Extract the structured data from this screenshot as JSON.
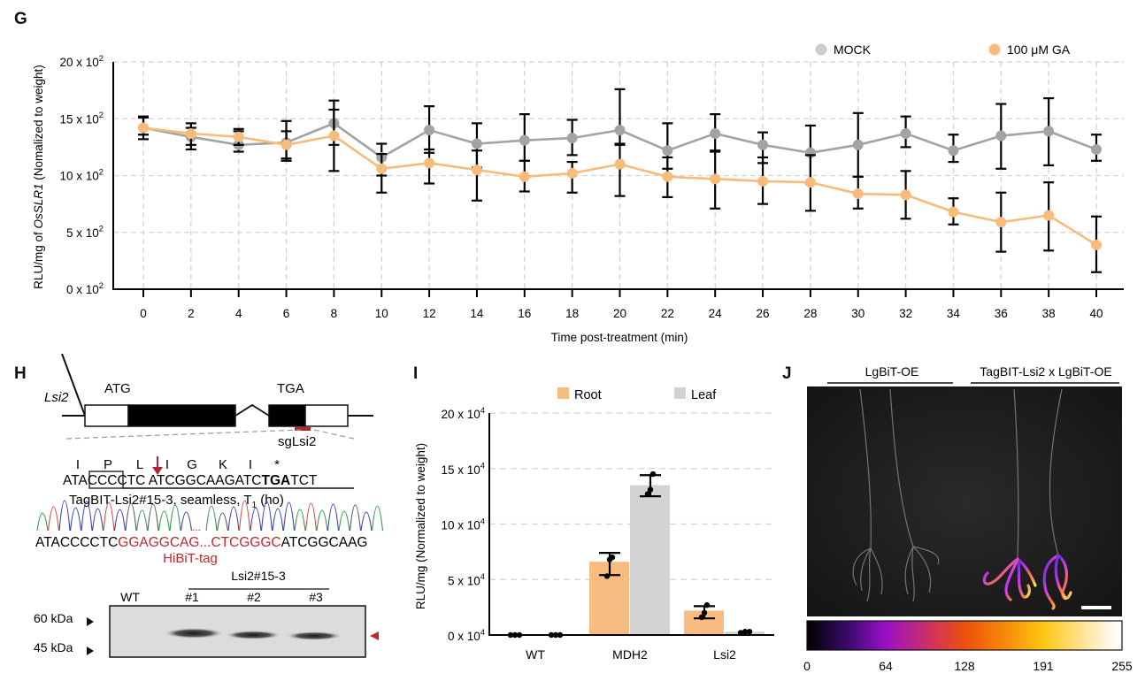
{
  "panels": {
    "G": {
      "letter": "G"
    },
    "H": {
      "letter": "H"
    },
    "I": {
      "letter": "I"
    },
    "J": {
      "letter": "J"
    }
  },
  "chart_data": [
    {
      "id": "G",
      "type": "line",
      "title": "",
      "xlabel": "Time post-treatment (min)",
      "ylabel_parts": [
        "RLU/mg  of ",
        "OsSLR1",
        " (Nomalized to weight)"
      ],
      "x": [
        0,
        2,
        4,
        6,
        8,
        10,
        12,
        14,
        16,
        18,
        20,
        22,
        24,
        26,
        28,
        30,
        32,
        34,
        36,
        38,
        40
      ],
      "x_tick_labels": [
        "0",
        "2",
        "4",
        "6",
        "8",
        "10",
        "12",
        "14",
        "16",
        "18",
        "20",
        "22",
        "24",
        "26",
        "28",
        "30",
        "32",
        "34",
        "36",
        "38",
        "40"
      ],
      "ylim": [
        0,
        20
      ],
      "y_ticks": [
        0,
        5,
        10,
        15,
        20
      ],
      "y_tick_labels": [
        "0 x 10²",
        "5 x 10²",
        "10 x 10²",
        "15 x 10²",
        "20 x 10²"
      ],
      "y_unit_multiplier": 100,
      "grid": true,
      "legend_position": "top-right",
      "series": [
        {
          "name": "MOCK",
          "color": "#a3a3a3",
          "legend_color": "#cccccc",
          "values": [
            14.2,
            13.4,
            12.7,
            12.9,
            14.6,
            11.6,
            14.0,
            12.8,
            13.1,
            13.3,
            14.0,
            12.2,
            13.7,
            12.7,
            12.0,
            12.7,
            13.7,
            12.2,
            13.5,
            13.9,
            12.3
          ],
          "err_low": [
            13.6,
            12.3,
            12.1,
            11.5,
            12.7,
            10.0,
            12.0,
            10.7,
            11.3,
            11.8,
            12.7,
            10.6,
            12.2,
            11.1,
            9.3,
            9.9,
            12.5,
            11.2,
            10.6,
            10.9,
            11.3
          ],
          "err_high": [
            15.1,
            14.6,
            14.1,
            14.8,
            16.6,
            12.8,
            16.1,
            14.6,
            15.4,
            14.9,
            17.6,
            14.6,
            15.4,
            13.8,
            14.4,
            15.5,
            15.2,
            13.6,
            16.3,
            16.8,
            13.6
          ]
        },
        {
          "name": "100 μM GA",
          "color": "#f7bb7b",
          "legend_color": "#f7bb7b",
          "values": [
            14.2,
            13.7,
            13.4,
            12.7,
            13.5,
            10.6,
            11.1,
            10.5,
            9.9,
            10.2,
            11.0,
            9.9,
            9.7,
            9.5,
            9.4,
            8.4,
            8.3,
            6.8,
            5.9,
            6.5,
            3.9
          ],
          "err_low": [
            13.2,
            12.7,
            12.7,
            11.3,
            10.4,
            8.5,
            9.3,
            7.8,
            8.6,
            8.5,
            8.2,
            8.1,
            7.1,
            7.5,
            6.9,
            7.1,
            6.2,
            5.7,
            3.3,
            3.4,
            1.5
          ],
          "err_high": [
            15.2,
            14.2,
            13.9,
            13.9,
            15.8,
            11.9,
            12.3,
            12.2,
            11.3,
            11.2,
            12.8,
            11.6,
            12.1,
            11.6,
            11.8,
            9.9,
            10.4,
            8.0,
            8.5,
            9.4,
            6.4
          ]
        }
      ]
    },
    {
      "id": "I",
      "type": "bar",
      "title": "",
      "xlabel": "",
      "ylabel": "RLU/mg (Normalized to weight)",
      "categories": [
        "WT",
        "MDH2",
        "Lsi2"
      ],
      "ylim": [
        0,
        20
      ],
      "y_ticks": [
        0,
        5,
        10,
        15,
        20
      ],
      "y_tick_labels": [
        "0 x 10⁴",
        "5 x 10⁴",
        "10 x 10⁴",
        "15 x 10⁴",
        "20 x 10⁴"
      ],
      "y_unit_multiplier": 10000,
      "grid": true,
      "legend_position": "top",
      "series": [
        {
          "name": "Root",
          "color": "#f9bc80",
          "values": [
            0.0,
            6.6,
            2.2
          ],
          "err_low": [
            0.0,
            5.4,
            1.5
          ],
          "err_high": [
            0.0,
            7.4,
            2.6
          ],
          "points": [
            [
              0,
              0,
              0
            ],
            [
              5.3,
              6.8,
              7.0
            ],
            [
              1.6,
              2.0,
              2.7
            ]
          ]
        },
        {
          "name": "Leaf",
          "color": "#d3d3d3",
          "values": [
            0.0,
            13.5,
            0.3
          ],
          "err_low": [
            0.0,
            12.5,
            0.2
          ],
          "err_high": [
            0.0,
            14.4,
            0.3
          ],
          "points": [
            [
              0,
              0,
              0
            ],
            [
              12.7,
              13.1,
              14.5
            ],
            [
              0.2,
              0.3,
              0.3
            ]
          ]
        }
      ]
    }
  ],
  "H": {
    "gene_name": "Lsi2",
    "start_codon": "ATG",
    "stop_codon": "TGA",
    "sgrna_label": "sgLsi2",
    "amino_acids": [
      "I",
      "P",
      "L",
      "I",
      "G",
      "K",
      "I",
      "*"
    ],
    "seq_parts": [
      {
        "text": "ATA",
        "style": "normal"
      },
      {
        "text": "CCC",
        "style": "boxed"
      },
      {
        "text": "CTC",
        "style": "normal"
      },
      {
        "text": " ATCGGCAAGATC",
        "style": "normal"
      },
      {
        "text": "TGA",
        "style": "bold"
      },
      {
        "text": "TCT",
        "style": "normal"
      }
    ],
    "line_label_main": "TagBIT-Lsi2#15-3, seamless, T",
    "line_label_sub": "1",
    "line_label_tail": " (ho)",
    "result_seq": [
      {
        "text": "ATACCCCTC",
        "color": "#111111"
      },
      {
        "text": "GGAGGCAG...CTCGGGC",
        "color": "#c0282d"
      },
      {
        "text": "ATCGGCAAG",
        "color": "#111111"
      }
    ],
    "tag_label": "HiBiT-tag",
    "accent_red": "#b3262b",
    "blot": {
      "group_label": "Lsi2#15-3",
      "lanes": [
        "WT",
        "#1",
        "#2",
        "#3"
      ],
      "markers": [
        "60 kDa",
        "45 kDa"
      ],
      "band_arrow_color": "#c0282d"
    }
  },
  "J": {
    "group_labels": [
      "LgBiT-OE",
      "TagBIT-Lsi2 x LgBiT-OE"
    ],
    "colorbar_ticks": [
      "0",
      "64",
      "128",
      "191",
      "255"
    ],
    "colorbar_stops": [
      "#000000",
      "#3a0a6a",
      "#9a10c8",
      "#d8384a",
      "#ee4f0c",
      "#f88a0a",
      "#fdc711",
      "#fff4e0",
      "#ffffff"
    ]
  }
}
